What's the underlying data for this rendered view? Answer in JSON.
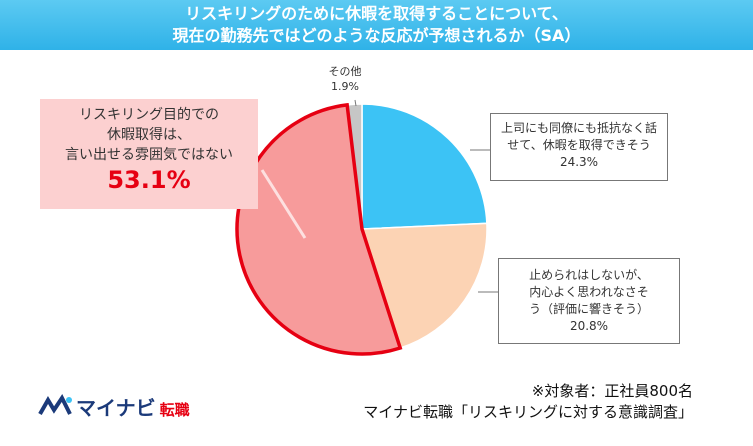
{
  "chart_data": {
    "type": "pie",
    "title": "リスキリングのために休暇を取得することについて、\n現在の勤務先ではどのような反応が予想されるか（SA）",
    "categories": [
      "上司にも同僚にも抵抗なく話\nせて、休暇を取得できそう",
      "止められはしないが、\n内心よく思われなさそ\nう（評価に響きそう）",
      "リスキリング目的での\n休暇取得は、\n言い出せる雰囲気ではない",
      "その他"
    ],
    "values": [
      24.3,
      20.8,
      53.1,
      1.9
    ],
    "value_labels": [
      "24.3%",
      "20.8%",
      "53.1%",
      "1.9%"
    ],
    "colors": [
      "#3cc3f5",
      "#fcd3b4",
      "#f79b9b",
      "#c6c6c6"
    ],
    "edge_colors": [
      "#ffffff",
      "#ffffff",
      "#e60012",
      "#ffffff"
    ],
    "footnotes": [
      "※対象者：正社員800名",
      "マイナビ転職「リスキリングに対する意識調査」"
    ]
  },
  "logo": {
    "brand": "マイナビ",
    "service": "転職"
  }
}
